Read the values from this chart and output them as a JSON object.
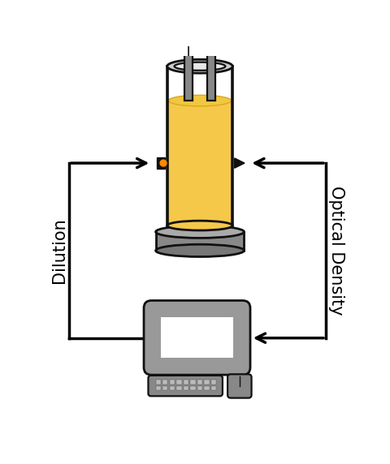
{
  "bg_color": "#ffffff",
  "outline_color": "#111111",
  "liquid_color": "#f5c84a",
  "liquid_top_color": "#f0c030",
  "tube_color": "#888888",
  "base_color": "#888888",
  "base_dark": "#666666",
  "monitor_color": "#999999",
  "screen_color": "#ffffff",
  "kbd_color": "#888888",
  "arrow_color": "#000000",
  "label_dilution": "Dilution",
  "label_od": "Optical Density",
  "label_fontsize": 15
}
